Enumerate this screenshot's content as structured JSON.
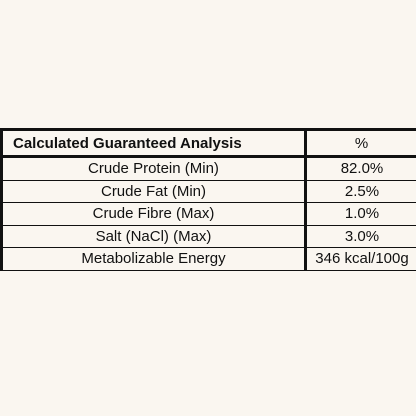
{
  "table": {
    "header": {
      "label": "Calculated Guaranteed Analysis",
      "unit": "%"
    },
    "rows": [
      {
        "nutrient": "Crude Protein (Min)",
        "value": "82.0%"
      },
      {
        "nutrient": "Crude Fat (Min)",
        "value": "2.5%"
      },
      {
        "nutrient": "Crude Fibre (Max)",
        "value": "1.0%"
      },
      {
        "nutrient": "Salt (NaCl) (Max)",
        "value": "3.0%"
      },
      {
        "nutrient": "Metabolizable Energy",
        "value": "346 kcal/100g"
      }
    ]
  },
  "colors": {
    "background": "#faf6f0",
    "text": "#111111",
    "border": "#111111"
  }
}
